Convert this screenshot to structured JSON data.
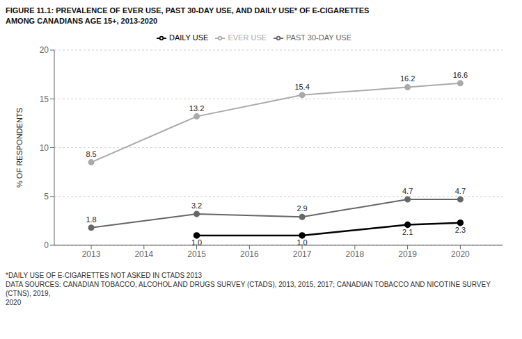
{
  "chart_data": {
    "type": "line",
    "title": "FIGURE 11.1: PREVALENCE OF EVER USE, PAST 30-DAY USE, AND DAILY USE* OF E-CIGARETTES",
    "subtitle": "AMONG CANADIANS AGE 15+, 2013-2020",
    "y_label": "% OF RESPONDENTS",
    "annotations": [
      "*DAILY USE OF E-CIGARETTES NOT ASKED IN CTADS 2013",
      "DATA SOURCES: CANADIAN TOBACCO, ALCOHOL AND DRUGS SURVEY (CTADS), 2013, 2015, 2017; CANADIAN TOBACCO AND NICOTINE SURVEY (CTNS), 2019,\n2020"
    ],
    "x": [
      2013,
      2015,
      2017,
      2019,
      2020
    ],
    "series": [
      {
        "name": "EVER USE",
        "color": "#aaaaaa",
        "values": [
          8.5,
          13.2,
          15.4,
          16.2,
          16.6
        ]
      },
      {
        "name": "PAST 30-DAY USE",
        "color": "#666666",
        "values": [
          1.8,
          3.2,
          2.9,
          4.7,
          4.7
        ]
      },
      {
        "name": "DAILY USE",
        "color": "#000000",
        "values": [
          null,
          1.0,
          1.0,
          2.1,
          2.3
        ],
        "value_labels": [
          null,
          "1.0",
          "1.0",
          "2.1",
          "2.3"
        ]
      }
    ],
    "xlim": [
      2012.3,
      2020.8
    ],
    "xticks": [
      2013,
      2014,
      2015,
      2016,
      2017,
      2018,
      2019,
      2020
    ],
    "ylim": [
      0,
      20
    ],
    "yticks": [
      0,
      5,
      10,
      15,
      20
    ],
    "grid": true,
    "legend": "top",
    "data_labels": true,
    "marker": "circle"
  }
}
